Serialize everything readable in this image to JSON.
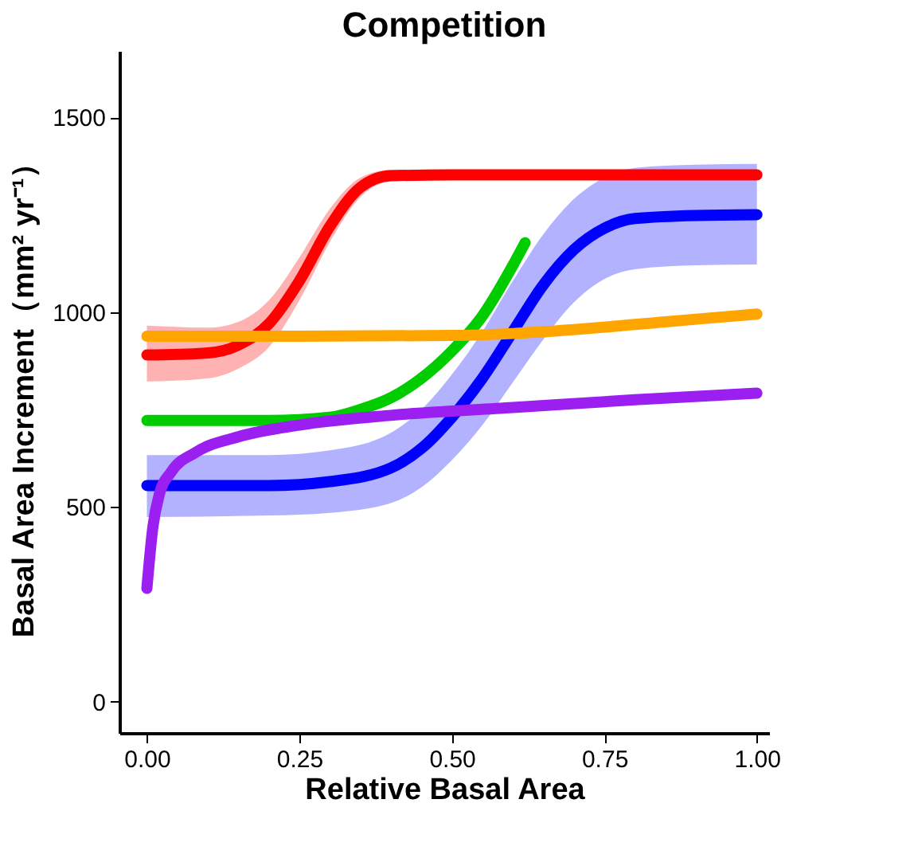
{
  "chart_data": {
    "type": "line",
    "title": "Competition",
    "xlabel": "Relative Basal Area",
    "ylabel": "Basal Area Increment（mm² yr⁻¹）",
    "xlim": [
      -0.045,
      1.02
    ],
    "ylim": [
      -80,
      1670
    ],
    "xticks": [
      {
        "value": 0,
        "label": "0.00"
      },
      {
        "value": 0.25,
        "label": "0.25"
      },
      {
        "value": 0.5,
        "label": "0.50"
      },
      {
        "value": 0.75,
        "label": "0.75"
      },
      {
        "value": 1,
        "label": "1.00"
      }
    ],
    "yticks": [
      0,
      500,
      1000,
      1500
    ],
    "grid": false,
    "marker": "none",
    "line_style": "solid",
    "series": [
      {
        "color": "#ff0000",
        "x": [
          0,
          0.1,
          0.15,
          0.2,
          0.25,
          0.3,
          0.35,
          0.4,
          0.5,
          0.75,
          1
        ],
        "values": [
          890,
          895,
          915,
          970,
          1080,
          1220,
          1320,
          1350,
          1352,
          1352,
          1352
        ],
        "lower": [
          822,
          830,
          855,
          910,
          1030,
          1180,
          1295,
          1335,
          1340,
          1340,
          1340
        ],
        "upper": [
          965,
          960,
          975,
          1030,
          1140,
          1265,
          1345,
          1365,
          1366,
          1366,
          1366
        ]
      },
      {
        "color": "#0000ff",
        "x": [
          0,
          0.2,
          0.3,
          0.4,
          0.45,
          0.5,
          0.55,
          0.6,
          0.65,
          0.7,
          0.75,
          0.8,
          0.9,
          1
        ],
        "values": [
          555,
          555,
          565,
          600,
          650,
          730,
          830,
          950,
          1070,
          1160,
          1215,
          1240,
          1248,
          1250
        ],
        "lower": [
          474,
          478,
          485,
          510,
          550,
          620,
          710,
          820,
          930,
          1025,
          1085,
          1110,
          1120,
          1122
        ],
        "upper": [
          633,
          633,
          645,
          690,
          750,
          840,
          950,
          1080,
          1200,
          1290,
          1345,
          1370,
          1378,
          1380
        ]
      },
      {
        "color": "#00cc00",
        "x": [
          0,
          0.2,
          0.3,
          0.35,
          0.4,
          0.45,
          0.5,
          0.55,
          0.6,
          0.62
        ],
        "values": [
          722,
          722,
          730,
          750,
          780,
          830,
          900,
          990,
          1120,
          1178
        ]
      },
      {
        "color": "#ffa500",
        "x": [
          0,
          0.25,
          0.5,
          0.6,
          0.7,
          0.85,
          1
        ],
        "values": [
          938,
          938,
          940,
          945,
          955,
          975,
          995
        ]
      },
      {
        "color": "#9b1ff0",
        "x": [
          0,
          0.01,
          0.02,
          0.04,
          0.08,
          0.15,
          0.25,
          0.4,
          0.6,
          0.8,
          1
        ],
        "values": [
          291,
          450,
          530,
          590,
          640,
          680,
          710,
          735,
          755,
          775,
          792
        ]
      }
    ]
  }
}
